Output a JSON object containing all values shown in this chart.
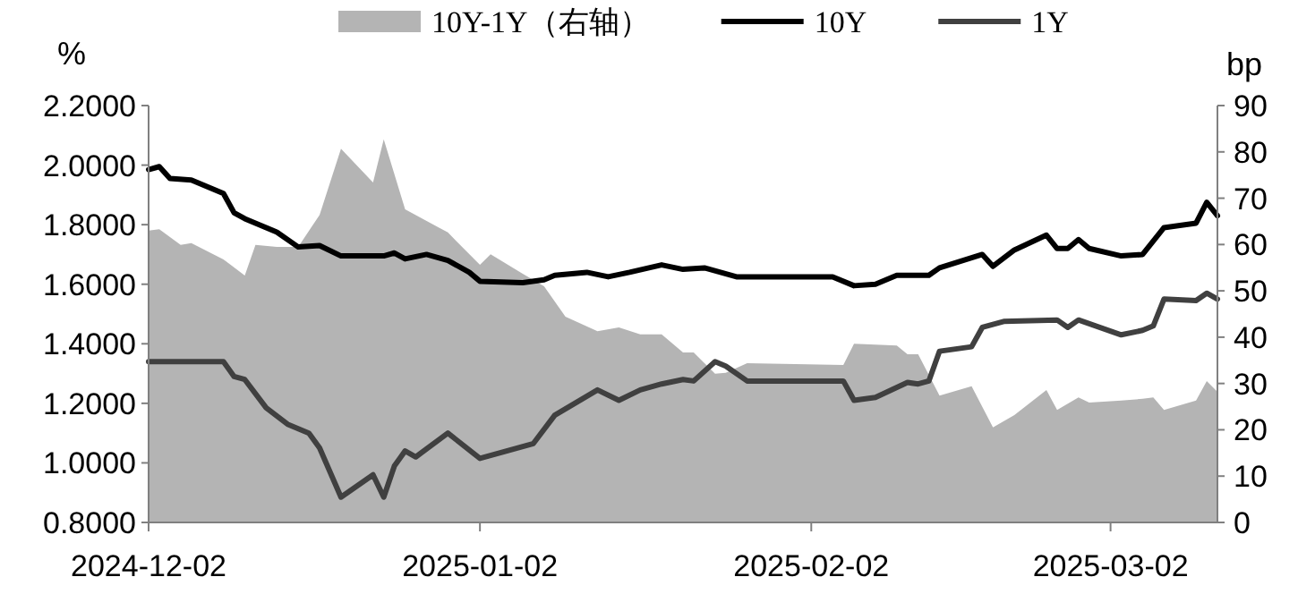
{
  "chart_data": {
    "type": "line",
    "ylabel": "%",
    "y2label": "bp",
    "legend": "top",
    "xlim": [
      "2024-12-02",
      "2025-03-12"
    ],
    "xticks": [
      "2024-12-02",
      "2025-01-02",
      "2025-02-02",
      "2025-03-02"
    ],
    "ylim": [
      0.8,
      2.2
    ],
    "yticks": [
      {
        "value": 0.8,
        "label": "0.8000"
      },
      {
        "value": 1.0,
        "label": "1.0000"
      },
      {
        "value": 1.2,
        "label": "1.2000"
      },
      {
        "value": 1.4,
        "label": "1.4000"
      },
      {
        "value": 1.6,
        "label": "1.6000"
      },
      {
        "value": 1.8,
        "label": "1.8000"
      },
      {
        "value": 2.0,
        "label": "2.0000"
      },
      {
        "value": 2.2,
        "label": "2.2000"
      }
    ],
    "y2lim": [
      0,
      90
    ],
    "y2ticks": [
      0,
      10,
      20,
      30,
      40,
      50,
      60,
      70,
      80,
      90
    ],
    "series": [
      {
        "name": "10Y-1Y（右轴）",
        "type": "area",
        "axis": "y2",
        "color": "#b4b4b4",
        "x": [
          "2024-12-02",
          "2024-12-03",
          "2024-12-05",
          "2024-12-06",
          "2024-12-09",
          "2024-12-11",
          "2024-12-12",
          "2024-12-14",
          "2024-12-16",
          "2024-12-18",
          "2024-12-20",
          "2024-12-23",
          "2024-12-24",
          "2024-12-26",
          "2024-12-30",
          "2025-01-02",
          "2025-01-03",
          "2025-01-06",
          "2025-01-08",
          "2025-01-10",
          "2025-01-13",
          "2025-01-15",
          "2025-01-17",
          "2025-01-19",
          "2025-01-21",
          "2025-01-22",
          "2025-01-24",
          "2025-01-25",
          "2025-01-27",
          "2025-02-05",
          "2025-02-06",
          "2025-02-10",
          "2025-02-11",
          "2025-02-12",
          "2025-02-14",
          "2025-02-17",
          "2025-02-19",
          "2025-02-21",
          "2025-02-24",
          "2025-02-25",
          "2025-02-27",
          "2025-02-28",
          "2025-03-03",
          "2025-03-05",
          "2025-03-06",
          "2025-03-07",
          "2025-03-10",
          "2025-03-11",
          "2025-03-12"
        ],
        "values": [
          63.0,
          63.3,
          59.9,
          60.3,
          56.8,
          53.3,
          59.9,
          59.5,
          59.5,
          66.4,
          80.7,
          73.4,
          82.7,
          67.6,
          62.6,
          55.6,
          57.9,
          53.7,
          51.0,
          44.4,
          41.3,
          42.1,
          40.6,
          40.6,
          36.7,
          36.7,
          32.1,
          32.3,
          34.4,
          34.0,
          38.6,
          38.2,
          36.3,
          36.3,
          27.4,
          29.4,
          20.5,
          23.2,
          28.6,
          24.3,
          27.0,
          25.9,
          26.3,
          26.7,
          27.0,
          24.3,
          26.3,
          30.5,
          28.2
        ]
      },
      {
        "name": "10Y",
        "color": "#000000",
        "x": [
          "2024-12-02",
          "2024-12-03",
          "2024-12-04",
          "2024-12-06",
          "2024-12-08",
          "2024-12-09",
          "2024-12-10",
          "2024-12-11",
          "2024-12-12",
          "2024-12-14",
          "2024-12-16",
          "2024-12-18",
          "2024-12-20",
          "2024-12-24",
          "2024-12-25",
          "2024-12-26",
          "2024-12-28",
          "2024-12-30",
          "2025-01-01",
          "2025-01-02",
          "2025-01-06",
          "2025-01-08",
          "2025-01-09",
          "2025-01-12",
          "2025-01-14",
          "2025-01-16",
          "2025-01-19",
          "2025-01-21",
          "2025-01-23",
          "2025-01-26",
          "2025-02-04",
          "2025-02-06",
          "2025-02-08",
          "2025-02-10",
          "2025-02-13",
          "2025-02-14",
          "2025-02-18",
          "2025-02-19",
          "2025-02-21",
          "2025-02-24",
          "2025-02-25",
          "2025-02-26",
          "2025-02-27",
          "2025-02-28",
          "2025-03-03",
          "2025-03-05",
          "2025-03-07",
          "2025-03-10",
          "2025-03-11",
          "2025-03-12"
        ],
        "values": [
          1.985,
          1.995,
          1.955,
          1.95,
          1.92,
          1.905,
          1.84,
          1.82,
          1.805,
          1.775,
          1.725,
          1.73,
          1.695,
          1.695,
          1.705,
          1.685,
          1.7,
          1.68,
          1.64,
          1.61,
          1.605,
          1.615,
          1.63,
          1.64,
          1.625,
          1.64,
          1.665,
          1.65,
          1.655,
          1.625,
          1.625,
          1.595,
          1.6,
          1.63,
          1.63,
          1.655,
          1.7,
          1.66,
          1.715,
          1.765,
          1.72,
          1.72,
          1.75,
          1.72,
          1.695,
          1.7,
          1.79,
          1.805,
          1.875,
          1.83
        ]
      },
      {
        "name": "1Y",
        "color": "#404040",
        "x": [
          "2024-12-02",
          "2024-12-09",
          "2024-12-10",
          "2024-12-11",
          "2024-12-13",
          "2024-12-15",
          "2024-12-17",
          "2024-12-18",
          "2024-12-20",
          "2024-12-23",
          "2024-12-24",
          "2024-12-25",
          "2024-12-26",
          "2024-12-27",
          "2024-12-30",
          "2025-01-02",
          "2025-01-07",
          "2025-01-09",
          "2025-01-13",
          "2025-01-15",
          "2025-01-17",
          "2025-01-19",
          "2025-01-21",
          "2025-01-22",
          "2025-01-24",
          "2025-01-25",
          "2025-01-27",
          "2025-02-05",
          "2025-02-06",
          "2025-02-08",
          "2025-02-11",
          "2025-02-12",
          "2025-02-13",
          "2025-02-14",
          "2025-02-17",
          "2025-02-18",
          "2025-02-20",
          "2025-02-25",
          "2025-02-26",
          "2025-02-27",
          "2025-03-03",
          "2025-03-05",
          "2025-03-06",
          "2025-03-07",
          "2025-03-10",
          "2025-03-11",
          "2025-03-12"
        ],
        "values": [
          1.34,
          1.34,
          1.29,
          1.28,
          1.185,
          1.13,
          1.1,
          1.05,
          0.885,
          0.96,
          0.885,
          0.99,
          1.04,
          1.02,
          1.1,
          1.015,
          1.065,
          1.16,
          1.245,
          1.21,
          1.245,
          1.265,
          1.28,
          1.275,
          1.34,
          1.325,
          1.275,
          1.275,
          1.21,
          1.22,
          1.27,
          1.265,
          1.275,
          1.375,
          1.39,
          1.455,
          1.475,
          1.48,
          1.455,
          1.48,
          1.43,
          1.445,
          1.46,
          1.55,
          1.545,
          1.57,
          1.55
        ]
      }
    ]
  }
}
